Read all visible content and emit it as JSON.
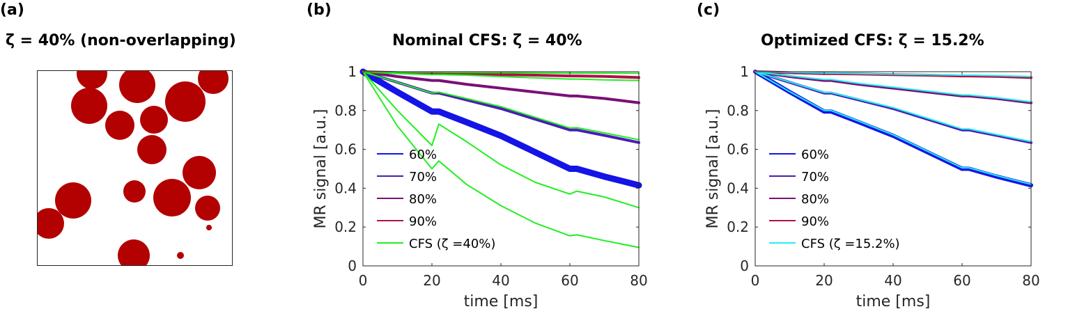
{
  "panels": {
    "a": {
      "letter": "(a)",
      "title": "ζ = 40% (non-overlapping)"
    },
    "b": {
      "letter": "(b)",
      "title": "Nominal CFS: ζ = 40%"
    },
    "c": {
      "letter": "(c)",
      "title": "Optimized CFS: ζ = 15.2%"
    }
  },
  "colors": {
    "circle": "#b30000",
    "s60": "#1414e6",
    "s70": "#4b1db5",
    "s80": "#7a0f78",
    "s90": "#b01048",
    "cfs_b": "#22ee22",
    "cfs_c": "#22eef0"
  },
  "chart_data": [
    {
      "type": "line",
      "panel": "b",
      "title": "Nominal CFS: ζ = 40%",
      "xlabel": "time [ms]",
      "ylabel": "MR signal [a.u.]",
      "xlim": [
        0,
        80
      ],
      "ylim": [
        0,
        1
      ],
      "xticks": [
        0,
        20,
        40,
        60,
        80
      ],
      "yticks": [
        0,
        0.2,
        0.4,
        0.6,
        0.8,
        1
      ],
      "x": [
        0,
        10,
        20,
        22,
        30,
        40,
        50,
        60,
        62,
        70,
        80
      ],
      "legend": {
        "position": "bottom-left",
        "entries": [
          {
            "label": "60%",
            "color": "s60"
          },
          {
            "label": "70%",
            "color": "s70"
          },
          {
            "label": "80%",
            "color": "s80"
          },
          {
            "label": "90%",
            "color": "s90"
          },
          {
            "label": "CFS (ζ =40%)",
            "color": "cfs_b"
          }
        ]
      },
      "series": [
        {
          "name": "60%",
          "color": "s60",
          "width": 9,
          "values": [
            1,
            0.895,
            0.795,
            0.795,
            0.74,
            0.67,
            0.585,
            0.5,
            0.5,
            0.46,
            0.415
          ]
        },
        {
          "name": "70%",
          "color": "s70",
          "width": 4,
          "values": [
            1,
            0.945,
            0.89,
            0.89,
            0.855,
            0.81,
            0.755,
            0.7,
            0.7,
            0.672,
            0.635
          ]
        },
        {
          "name": "80%",
          "color": "s80",
          "width": 4,
          "values": [
            1,
            0.975,
            0.955,
            0.955,
            0.935,
            0.915,
            0.895,
            0.875,
            0.875,
            0.862,
            0.84
          ]
        },
        {
          "name": "90%",
          "color": "s90",
          "width": 4,
          "values": [
            1,
            0.995,
            0.99,
            0.99,
            0.988,
            0.985,
            0.982,
            0.978,
            0.978,
            0.976,
            0.97
          ]
        },
        {
          "name": "CFS (ζ =40%)",
          "color": "cfs_b",
          "width": 2,
          "values": [
            1,
            0.8,
            0.62,
            0.73,
            0.64,
            0.52,
            0.43,
            0.37,
            0.385,
            0.355,
            0.3
          ]
        },
        {
          "name": "CFS (ζ =40%)",
          "color": "cfs_b",
          "width": 2,
          "values": [
            1,
            0.72,
            0.5,
            0.54,
            0.42,
            0.31,
            0.22,
            0.155,
            0.16,
            0.13,
            0.095
          ]
        },
        {
          "name": "CFS (ζ =40%)",
          "color": "cfs_b",
          "width": 2,
          "values": [
            1,
            0.945,
            0.89,
            0.895,
            0.862,
            0.82,
            0.765,
            0.71,
            0.712,
            0.685,
            0.65
          ]
        },
        {
          "name": "CFS (ζ =40%)",
          "color": "cfs_b",
          "width": 2,
          "values": [
            1,
            0.99,
            0.985,
            0.985,
            0.982,
            0.975,
            0.968,
            0.962,
            0.962,
            0.958,
            0.955
          ]
        },
        {
          "name": "CFS (ζ =40%)",
          "color": "cfs_b",
          "width": 2,
          "values": [
            1,
            0.998,
            0.997,
            0.997,
            0.996,
            0.995,
            0.994,
            0.993,
            0.993,
            0.993,
            0.992
          ]
        }
      ]
    },
    {
      "type": "line",
      "panel": "c",
      "title": "Optimized CFS: ζ = 15.2%",
      "xlabel": "time [ms]",
      "ylabel": "MR signal [a.u.]",
      "xlim": [
        0,
        80
      ],
      "ylim": [
        0,
        1
      ],
      "xticks": [
        0,
        20,
        40,
        60,
        80
      ],
      "yticks": [
        0,
        0.2,
        0.4,
        0.6,
        0.8,
        1
      ],
      "x": [
        0,
        10,
        20,
        22,
        30,
        40,
        50,
        60,
        62,
        70,
        80
      ],
      "legend": {
        "position": "bottom-left",
        "entries": [
          {
            "label": "60%",
            "color": "s60"
          },
          {
            "label": "70%",
            "color": "s70"
          },
          {
            "label": "80%",
            "color": "s80"
          },
          {
            "label": "90%",
            "color": "s90"
          },
          {
            "label": "CFS (ζ =15.2%)",
            "color": "cfs_c"
          }
        ]
      },
      "series": [
        {
          "name": "60%",
          "color": "s60",
          "width": 6,
          "values": [
            1,
            0.895,
            0.795,
            0.795,
            0.74,
            0.67,
            0.585,
            0.5,
            0.5,
            0.46,
            0.415
          ]
        },
        {
          "name": "70%",
          "color": "s70",
          "width": 4,
          "values": [
            1,
            0.945,
            0.89,
            0.89,
            0.855,
            0.81,
            0.755,
            0.7,
            0.7,
            0.672,
            0.635
          ]
        },
        {
          "name": "80%",
          "color": "s80",
          "width": 4,
          "values": [
            1,
            0.975,
            0.955,
            0.955,
            0.935,
            0.915,
            0.895,
            0.875,
            0.875,
            0.862,
            0.84
          ]
        },
        {
          "name": "90%",
          "color": "s90",
          "width": 4,
          "values": [
            1,
            0.995,
            0.99,
            0.99,
            0.988,
            0.985,
            0.982,
            0.978,
            0.978,
            0.976,
            0.97
          ]
        },
        {
          "name": "CFS (ζ =15.2%)",
          "color": "cfs_c",
          "width": 2,
          "values": [
            1,
            0.897,
            0.8,
            0.8,
            0.745,
            0.675,
            0.59,
            0.505,
            0.505,
            0.465,
            0.42
          ]
        },
        {
          "name": "CFS (ζ =15.2%)",
          "color": "cfs_c",
          "width": 2,
          "values": [
            1,
            0.947,
            0.893,
            0.893,
            0.858,
            0.815,
            0.76,
            0.705,
            0.705,
            0.676,
            0.64
          ]
        },
        {
          "name": "CFS (ζ =15.2%)",
          "color": "cfs_c",
          "width": 2,
          "values": [
            1,
            0.978,
            0.96,
            0.96,
            0.94,
            0.92,
            0.9,
            0.88,
            0.88,
            0.866,
            0.845
          ]
        },
        {
          "name": "CFS (ζ =15.2%)",
          "color": "cfs_c",
          "width": 2,
          "values": [
            1,
            0.997,
            0.993,
            0.993,
            0.99,
            0.987,
            0.985,
            0.982,
            0.982,
            0.98,
            0.975
          ]
        }
      ]
    }
  ]
}
